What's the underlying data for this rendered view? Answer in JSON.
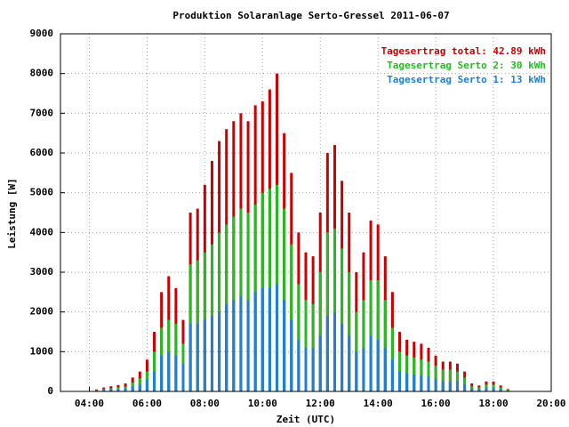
{
  "chart_data": {
    "type": "bar",
    "title": "Produktion Solaranlage Serto-Gressel 2011-06-07",
    "xlabel": "Zeit (UTC)",
    "ylabel": "Leistung [W]",
    "x": [
      4.25,
      4.5,
      4.75,
      5,
      5.25,
      5.5,
      5.75,
      6,
      6.25,
      6.5,
      6.75,
      7,
      7.25,
      7.5,
      7.75,
      8,
      8.25,
      8.5,
      8.75,
      9,
      9.25,
      9.5,
      9.75,
      10,
      10.25,
      10.5,
      10.75,
      11,
      11.25,
      11.5,
      11.75,
      12,
      12.25,
      12.5,
      12.75,
      13,
      13.25,
      13.5,
      13.75,
      14,
      14.25,
      14.5,
      14.75,
      15,
      15.25,
      15.5,
      15.75,
      16,
      16.25,
      16.5,
      16.75,
      17,
      17.25,
      17.5,
      17.75,
      18,
      18.25,
      18.5
    ],
    "series": [
      {
        "name": "Tagesertrag total: 42.89 kWh",
        "color": "#cc0000",
        "values": [
          50,
          100,
          130,
          160,
          200,
          350,
          500,
          800,
          1500,
          2500,
          2900,
          2600,
          1800,
          4500,
          4600,
          5200,
          5800,
          6300,
          6600,
          6800,
          7000,
          6800,
          7200,
          7300,
          7600,
          8000,
          6500,
          5500,
          4000,
          3500,
          3400,
          4500,
          6000,
          6200,
          5300,
          4500,
          3000,
          3500,
          4300,
          4200,
          3400,
          2500,
          1500,
          1300,
          1250,
          1200,
          1100,
          900,
          750,
          750,
          700,
          500,
          200,
          150,
          250,
          250,
          150,
          60
        ]
      },
      {
        "name": "Tagesertrag Serto 2: 30 kWh",
        "color": "#22bb22",
        "values": [
          30,
          60,
          80,
          100,
          120,
          220,
          330,
          500,
          1000,
          1600,
          1800,
          1700,
          1200,
          3200,
          3300,
          3500,
          3700,
          4000,
          4200,
          4400,
          4600,
          4500,
          4700,
          5000,
          5100,
          5200,
          4600,
          3700,
          2700,
          2300,
          2200,
          3000,
          4000,
          4100,
          3600,
          3000,
          2000,
          2300,
          2800,
          2800,
          2300,
          1600,
          1000,
          900,
          850,
          800,
          750,
          650,
          550,
          550,
          500,
          350,
          130,
          100,
          170,
          170,
          100,
          40
        ]
      },
      {
        "name": "Tagesertrag Serto 1: 13 kWh",
        "color": "#1e7fd8",
        "values": [
          20,
          40,
          50,
          60,
          80,
          130,
          170,
          300,
          500,
          900,
          1000,
          900,
          700,
          1700,
          1700,
          1800,
          1900,
          2000,
          2200,
          2300,
          2400,
          2300,
          2500,
          2600,
          2600,
          2700,
          2300,
          1800,
          1300,
          1100,
          1100,
          1400,
          1900,
          2000,
          1700,
          1400,
          1000,
          1100,
          1400,
          1300,
          1100,
          800,
          500,
          450,
          420,
          400,
          380,
          300,
          250,
          250,
          250,
          170,
          70,
          50,
          80,
          80,
          50,
          20
        ]
      }
    ],
    "xlim": [
      3,
      20
    ],
    "xticks": [
      {
        "value": 4,
        "label": "04:00"
      },
      {
        "value": 6,
        "label": "06:00"
      },
      {
        "value": 8,
        "label": "08:00"
      },
      {
        "value": 10,
        "label": "10:00"
      },
      {
        "value": 12,
        "label": "12:00"
      },
      {
        "value": 14,
        "label": "14:00"
      },
      {
        "value": 16,
        "label": "16:00"
      },
      {
        "value": 18,
        "label": "18:00"
      },
      {
        "value": 20,
        "label": "20:00"
      }
    ],
    "ylim": [
      0,
      9000
    ],
    "yticks": [
      0,
      1000,
      2000,
      3000,
      4000,
      5000,
      6000,
      7000,
      8000,
      9000
    ],
    "grid": true,
    "legend": "top-right"
  }
}
